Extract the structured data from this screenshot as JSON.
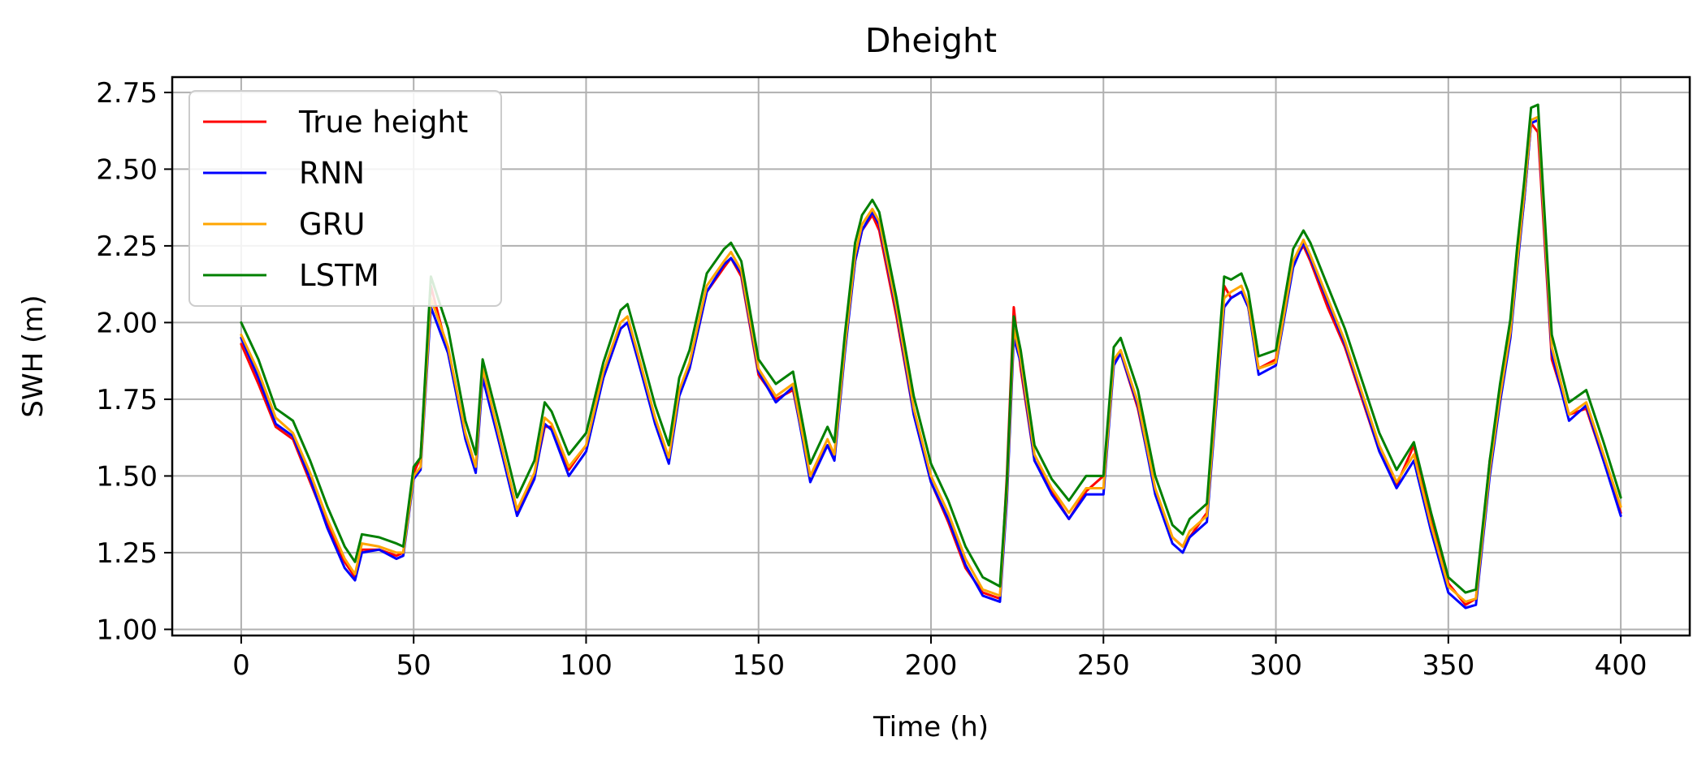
{
  "chart_data": {
    "type": "line",
    "title": "Dheight",
    "xlabel": "Time (h)",
    "ylabel": "SWH (m)",
    "xlim": [
      -20,
      420
    ],
    "ylim": [
      0.98,
      2.8
    ],
    "xticks": [
      0,
      50,
      100,
      150,
      200,
      250,
      300,
      350,
      400
    ],
    "yticks": [
      "1.00",
      "1.25",
      "1.50",
      "1.75",
      "2.00",
      "2.25",
      "2.50",
      "2.75"
    ],
    "grid": true,
    "legend_position": "top-left",
    "series": [
      {
        "name": "True height",
        "color": "#ff0000",
        "x": [
          0,
          5,
          10,
          15,
          20,
          25,
          30,
          33,
          35,
          40,
          45,
          47,
          50,
          52,
          55,
          60,
          65,
          68,
          70,
          75,
          80,
          85,
          88,
          90,
          95,
          100,
          105,
          110,
          112,
          115,
          120,
          124,
          127,
          130,
          135,
          140,
          142,
          145,
          150,
          155,
          160,
          165,
          170,
          172,
          175,
          178,
          180,
          183,
          185,
          190,
          195,
          200,
          205,
          210,
          215,
          220,
          222,
          224,
          226,
          230,
          235,
          240,
          245,
          250,
          253,
          255,
          260,
          265,
          270,
          273,
          275,
          280,
          285,
          287,
          290,
          292,
          295,
          300,
          305,
          308,
          310,
          315,
          320,
          325,
          330,
          335,
          340,
          345,
          350,
          355,
          358,
          362,
          365,
          368,
          370,
          372,
          374,
          376,
          380,
          385,
          390,
          395,
          400
        ],
        "y": [
          1.93,
          1.8,
          1.66,
          1.62,
          1.48,
          1.34,
          1.22,
          1.17,
          1.26,
          1.26,
          1.24,
          1.25,
          1.51,
          1.56,
          2.12,
          1.9,
          1.63,
          1.52,
          1.83,
          1.6,
          1.38,
          1.5,
          1.66,
          1.66,
          1.52,
          1.6,
          1.82,
          1.98,
          2.0,
          1.88,
          1.68,
          1.55,
          1.78,
          1.85,
          2.1,
          2.18,
          2.21,
          2.15,
          1.83,
          1.75,
          1.78,
          1.5,
          1.6,
          1.56,
          1.95,
          2.2,
          2.3,
          2.35,
          2.3,
          2.02,
          1.7,
          1.48,
          1.35,
          1.2,
          1.12,
          1.1,
          1.5,
          2.05,
          1.85,
          1.55,
          1.45,
          1.36,
          1.45,
          1.5,
          1.87,
          1.9,
          1.72,
          1.45,
          1.3,
          1.27,
          1.3,
          1.38,
          2.12,
          2.08,
          2.1,
          2.05,
          1.85,
          1.88,
          2.2,
          2.25,
          2.2,
          2.05,
          1.92,
          1.75,
          1.58,
          1.47,
          1.6,
          1.35,
          1.15,
          1.08,
          1.1,
          1.55,
          1.75,
          2.0,
          2.2,
          2.4,
          2.65,
          2.62,
          1.88,
          1.7,
          1.72,
          1.55,
          1.38
        ]
      },
      {
        "name": "RNN",
        "color": "#0000ff",
        "x": [
          0,
          5,
          10,
          15,
          20,
          25,
          30,
          33,
          35,
          40,
          45,
          47,
          50,
          52,
          55,
          60,
          65,
          68,
          70,
          75,
          80,
          85,
          88,
          90,
          95,
          100,
          105,
          110,
          112,
          115,
          120,
          124,
          127,
          130,
          135,
          140,
          142,
          145,
          150,
          155,
          160,
          165,
          170,
          172,
          175,
          178,
          180,
          183,
          185,
          190,
          195,
          200,
          205,
          210,
          215,
          220,
          222,
          224,
          226,
          230,
          235,
          240,
          245,
          250,
          253,
          255,
          260,
          265,
          270,
          273,
          275,
          280,
          285,
          287,
          290,
          292,
          295,
          300,
          305,
          308,
          310,
          315,
          320,
          325,
          330,
          335,
          340,
          345,
          350,
          355,
          358,
          362,
          365,
          368,
          370,
          372,
          374,
          376,
          380,
          385,
          390,
          395,
          400
        ],
        "y": [
          1.95,
          1.82,
          1.67,
          1.63,
          1.49,
          1.33,
          1.2,
          1.16,
          1.25,
          1.26,
          1.23,
          1.24,
          1.49,
          1.52,
          2.05,
          1.9,
          1.62,
          1.51,
          1.82,
          1.6,
          1.37,
          1.49,
          1.67,
          1.65,
          1.5,
          1.58,
          1.82,
          1.98,
          2.0,
          1.88,
          1.67,
          1.54,
          1.76,
          1.85,
          2.1,
          2.19,
          2.21,
          2.16,
          1.84,
          1.74,
          1.79,
          1.48,
          1.6,
          1.55,
          1.9,
          2.2,
          2.3,
          2.36,
          2.32,
          2.04,
          1.7,
          1.48,
          1.36,
          1.21,
          1.11,
          1.09,
          1.42,
          1.95,
          1.87,
          1.55,
          1.44,
          1.36,
          1.44,
          1.44,
          1.86,
          1.9,
          1.73,
          1.44,
          1.28,
          1.25,
          1.3,
          1.35,
          2.05,
          2.08,
          2.1,
          2.05,
          1.83,
          1.86,
          2.18,
          2.26,
          2.21,
          2.07,
          1.93,
          1.76,
          1.58,
          1.46,
          1.55,
          1.32,
          1.12,
          1.07,
          1.08,
          1.5,
          1.74,
          1.95,
          2.18,
          2.4,
          2.65,
          2.66,
          1.9,
          1.68,
          1.73,
          1.55,
          1.37
        ]
      },
      {
        "name": "GRU",
        "color": "#ffa500",
        "x": [
          0,
          5,
          10,
          15,
          20,
          25,
          30,
          33,
          35,
          40,
          45,
          47,
          50,
          52,
          55,
          60,
          65,
          68,
          70,
          75,
          80,
          85,
          88,
          90,
          95,
          100,
          105,
          110,
          112,
          115,
          120,
          124,
          127,
          130,
          135,
          140,
          142,
          145,
          150,
          155,
          160,
          165,
          170,
          172,
          175,
          178,
          180,
          183,
          185,
          190,
          195,
          200,
          205,
          210,
          215,
          220,
          222,
          224,
          226,
          230,
          235,
          240,
          245,
          250,
          253,
          255,
          260,
          265,
          270,
          273,
          275,
          280,
          285,
          287,
          290,
          292,
          295,
          300,
          305,
          308,
          310,
          315,
          320,
          325,
          330,
          335,
          340,
          345,
          350,
          355,
          358,
          362,
          365,
          368,
          370,
          372,
          374,
          376,
          380,
          385,
          390,
          395,
          400
        ],
        "y": [
          1.96,
          1.84,
          1.69,
          1.64,
          1.51,
          1.36,
          1.23,
          1.18,
          1.28,
          1.27,
          1.25,
          1.25,
          1.5,
          1.53,
          2.08,
          1.92,
          1.64,
          1.53,
          1.85,
          1.62,
          1.39,
          1.51,
          1.69,
          1.67,
          1.53,
          1.6,
          1.84,
          2.0,
          2.02,
          1.9,
          1.69,
          1.56,
          1.78,
          1.87,
          2.12,
          2.2,
          2.23,
          2.17,
          1.85,
          1.76,
          1.8,
          1.5,
          1.62,
          1.57,
          1.92,
          2.22,
          2.32,
          2.37,
          2.33,
          2.05,
          1.72,
          1.5,
          1.38,
          1.23,
          1.13,
          1.11,
          1.45,
          1.98,
          1.88,
          1.57,
          1.46,
          1.38,
          1.46,
          1.46,
          1.88,
          1.91,
          1.74,
          1.46,
          1.3,
          1.27,
          1.32,
          1.37,
          2.08,
          2.1,
          2.12,
          2.06,
          1.85,
          1.87,
          2.2,
          2.27,
          2.22,
          2.08,
          1.94,
          1.77,
          1.6,
          1.48,
          1.57,
          1.34,
          1.14,
          1.09,
          1.1,
          1.52,
          1.76,
          1.97,
          2.2,
          2.42,
          2.66,
          2.67,
          1.92,
          1.7,
          1.74,
          1.57,
          1.4
        ]
      },
      {
        "name": "LSTM",
        "color": "#008000",
        "x": [
          0,
          5,
          10,
          15,
          20,
          25,
          30,
          33,
          35,
          40,
          45,
          47,
          50,
          52,
          55,
          60,
          65,
          68,
          70,
          75,
          80,
          85,
          88,
          90,
          95,
          100,
          105,
          110,
          112,
          115,
          120,
          124,
          127,
          130,
          135,
          140,
          142,
          145,
          150,
          155,
          160,
          165,
          170,
          172,
          175,
          178,
          180,
          183,
          185,
          190,
          195,
          200,
          205,
          210,
          215,
          220,
          222,
          224,
          226,
          230,
          235,
          240,
          245,
          250,
          253,
          255,
          260,
          265,
          270,
          273,
          275,
          280,
          285,
          287,
          290,
          292,
          295,
          300,
          305,
          308,
          310,
          315,
          320,
          325,
          330,
          335,
          340,
          345,
          350,
          355,
          358,
          362,
          365,
          368,
          370,
          372,
          374,
          376,
          380,
          385,
          390,
          395,
          400
        ],
        "y": [
          2.0,
          1.88,
          1.72,
          1.68,
          1.55,
          1.4,
          1.27,
          1.22,
          1.31,
          1.3,
          1.28,
          1.27,
          1.53,
          1.56,
          2.15,
          1.98,
          1.68,
          1.57,
          1.88,
          1.66,
          1.43,
          1.55,
          1.74,
          1.71,
          1.57,
          1.64,
          1.87,
          2.04,
          2.06,
          1.94,
          1.73,
          1.6,
          1.82,
          1.91,
          2.16,
          2.24,
          2.26,
          2.2,
          1.88,
          1.8,
          1.84,
          1.54,
          1.66,
          1.61,
          1.96,
          2.26,
          2.35,
          2.4,
          2.36,
          2.08,
          1.76,
          1.54,
          1.42,
          1.27,
          1.17,
          1.14,
          1.48,
          2.02,
          1.91,
          1.6,
          1.49,
          1.42,
          1.5,
          1.5,
          1.92,
          1.95,
          1.78,
          1.5,
          1.34,
          1.31,
          1.36,
          1.41,
          2.15,
          2.14,
          2.16,
          2.1,
          1.89,
          1.91,
          2.24,
          2.3,
          2.26,
          2.12,
          1.98,
          1.81,
          1.64,
          1.52,
          1.61,
          1.38,
          1.17,
          1.12,
          1.13,
          1.55,
          1.8,
          2.01,
          2.25,
          2.46,
          2.7,
          2.71,
          1.96,
          1.74,
          1.78,
          1.61,
          1.43
        ]
      }
    ]
  }
}
